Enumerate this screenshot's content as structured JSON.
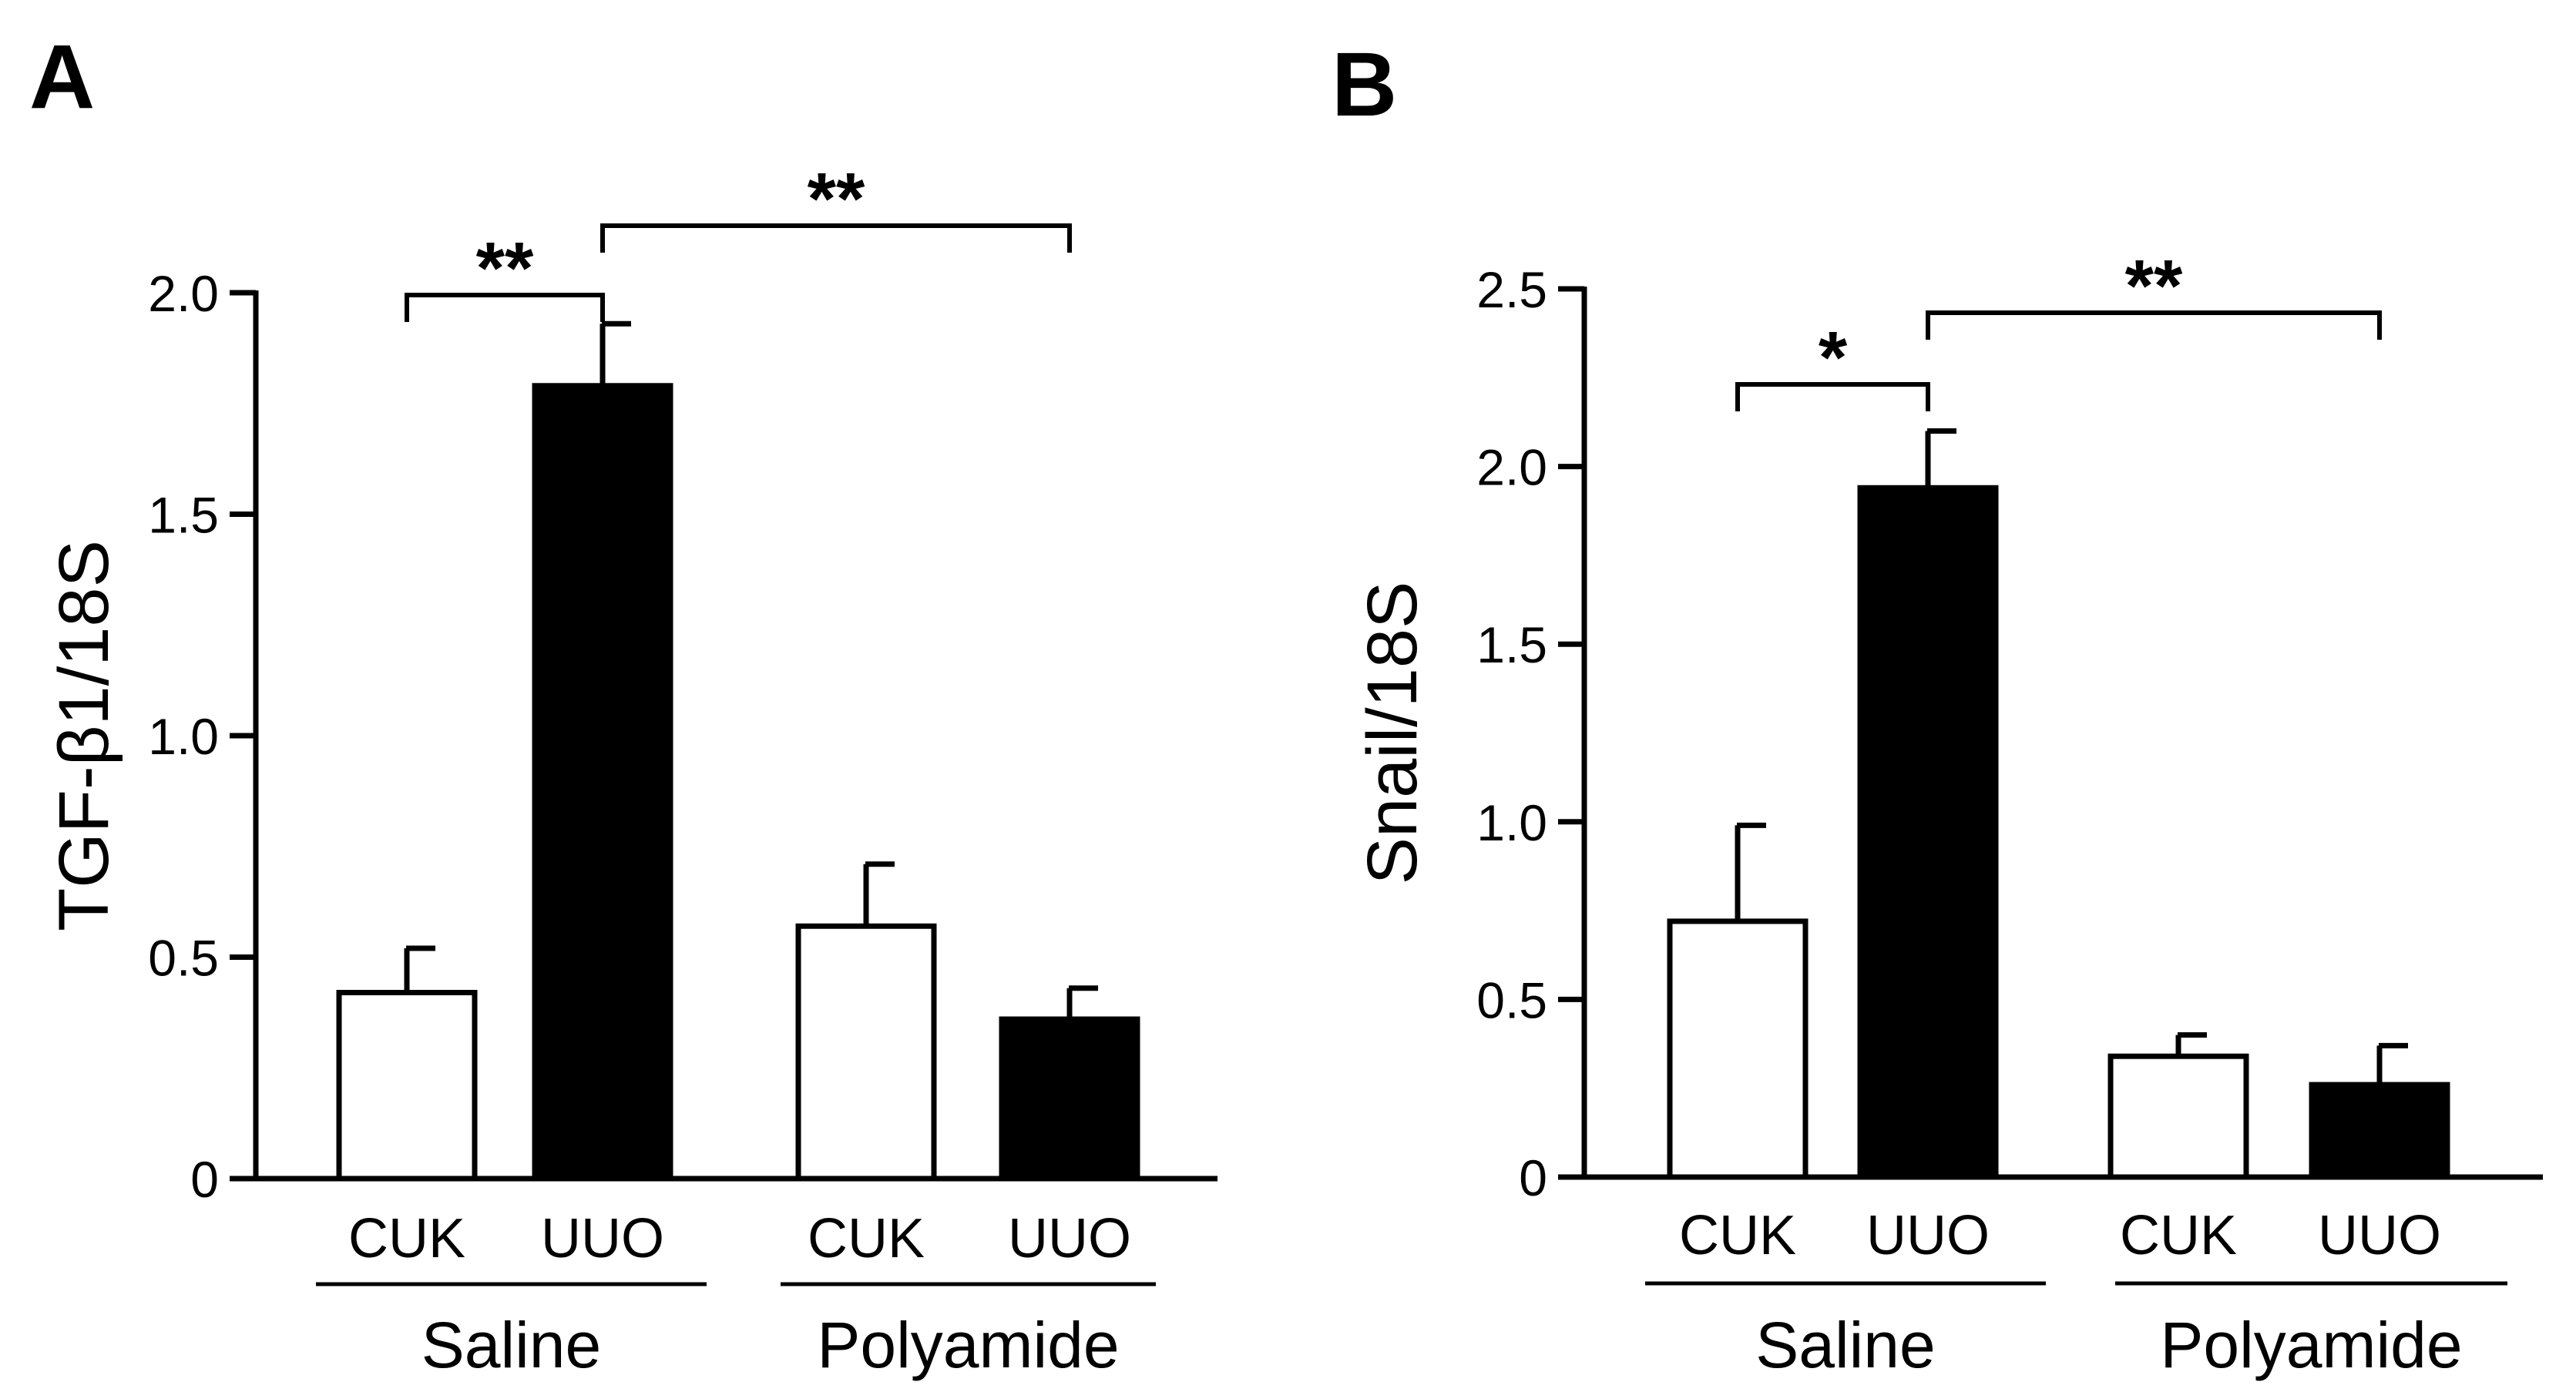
{
  "panels": [
    {
      "label": "A",
      "chart_data": {
        "type": "bar",
        "ylabel": "TGF-β1/18S",
        "ylim": [
          0,
          2.0
        ],
        "yticks": [
          {
            "value": 0,
            "label": "0"
          },
          {
            "value": 0.5,
            "label": "0.5"
          },
          {
            "value": 1.0,
            "label": "1.0"
          },
          {
            "value": 1.5,
            "label": "1.5"
          },
          {
            "value": 2.0,
            "label": "2.0"
          }
        ],
        "groups": [
          {
            "name": "Saline",
            "categories": [
              "CUK",
              "UUO"
            ]
          },
          {
            "name": "Polyamide",
            "categories": [
              "CUK",
              "UUO"
            ]
          }
        ],
        "bars": [
          {
            "group": "Saline",
            "category": "CUK",
            "value": 0.42,
            "error": 0.1,
            "fill": "#ffffff"
          },
          {
            "group": "Saline",
            "category": "UUO",
            "value": 1.79,
            "error": 0.14,
            "fill": "#000000"
          },
          {
            "group": "Polyamide",
            "category": "CUK",
            "value": 0.57,
            "error": 0.14,
            "fill": "#ffffff"
          },
          {
            "group": "Polyamide",
            "category": "UUO",
            "value": 0.36,
            "error": 0.07,
            "fill": "#000000"
          }
        ],
        "annotations": [
          {
            "from_bar": 0,
            "to_bar": 1,
            "label": "**"
          },
          {
            "from_bar": 1,
            "to_bar": 3,
            "label": "**"
          }
        ]
      }
    },
    {
      "label": "B",
      "chart_data": {
        "type": "bar",
        "ylabel": "Snail/18S",
        "ylim": [
          0,
          2.5
        ],
        "yticks": [
          {
            "value": 0,
            "label": "0"
          },
          {
            "value": 0.5,
            "label": "0.5"
          },
          {
            "value": 1.0,
            "label": "1.0"
          },
          {
            "value": 1.5,
            "label": "1.5"
          },
          {
            "value": 2.0,
            "label": "2.0"
          },
          {
            "value": 2.5,
            "label": "2.5"
          }
        ],
        "groups": [
          {
            "name": "Saline",
            "categories": [
              "CUK",
              "UUO"
            ]
          },
          {
            "name": "Polyamide",
            "categories": [
              "CUK",
              "UUO"
            ]
          }
        ],
        "bars": [
          {
            "group": "Saline",
            "category": "CUK",
            "value": 0.72,
            "error": 0.27,
            "fill": "#ffffff"
          },
          {
            "group": "Saline",
            "category": "UUO",
            "value": 1.94,
            "error": 0.16,
            "fill": "#000000"
          },
          {
            "group": "Polyamide",
            "category": "CUK",
            "value": 0.34,
            "error": 0.06,
            "fill": "#ffffff"
          },
          {
            "group": "Polyamide",
            "category": "UUO",
            "value": 0.26,
            "error": 0.11,
            "fill": "#000000"
          }
        ],
        "annotations": [
          {
            "from_bar": 0,
            "to_bar": 1,
            "label": "*"
          },
          {
            "from_bar": 1,
            "to_bar": 3,
            "label": "**"
          }
        ]
      }
    }
  ]
}
